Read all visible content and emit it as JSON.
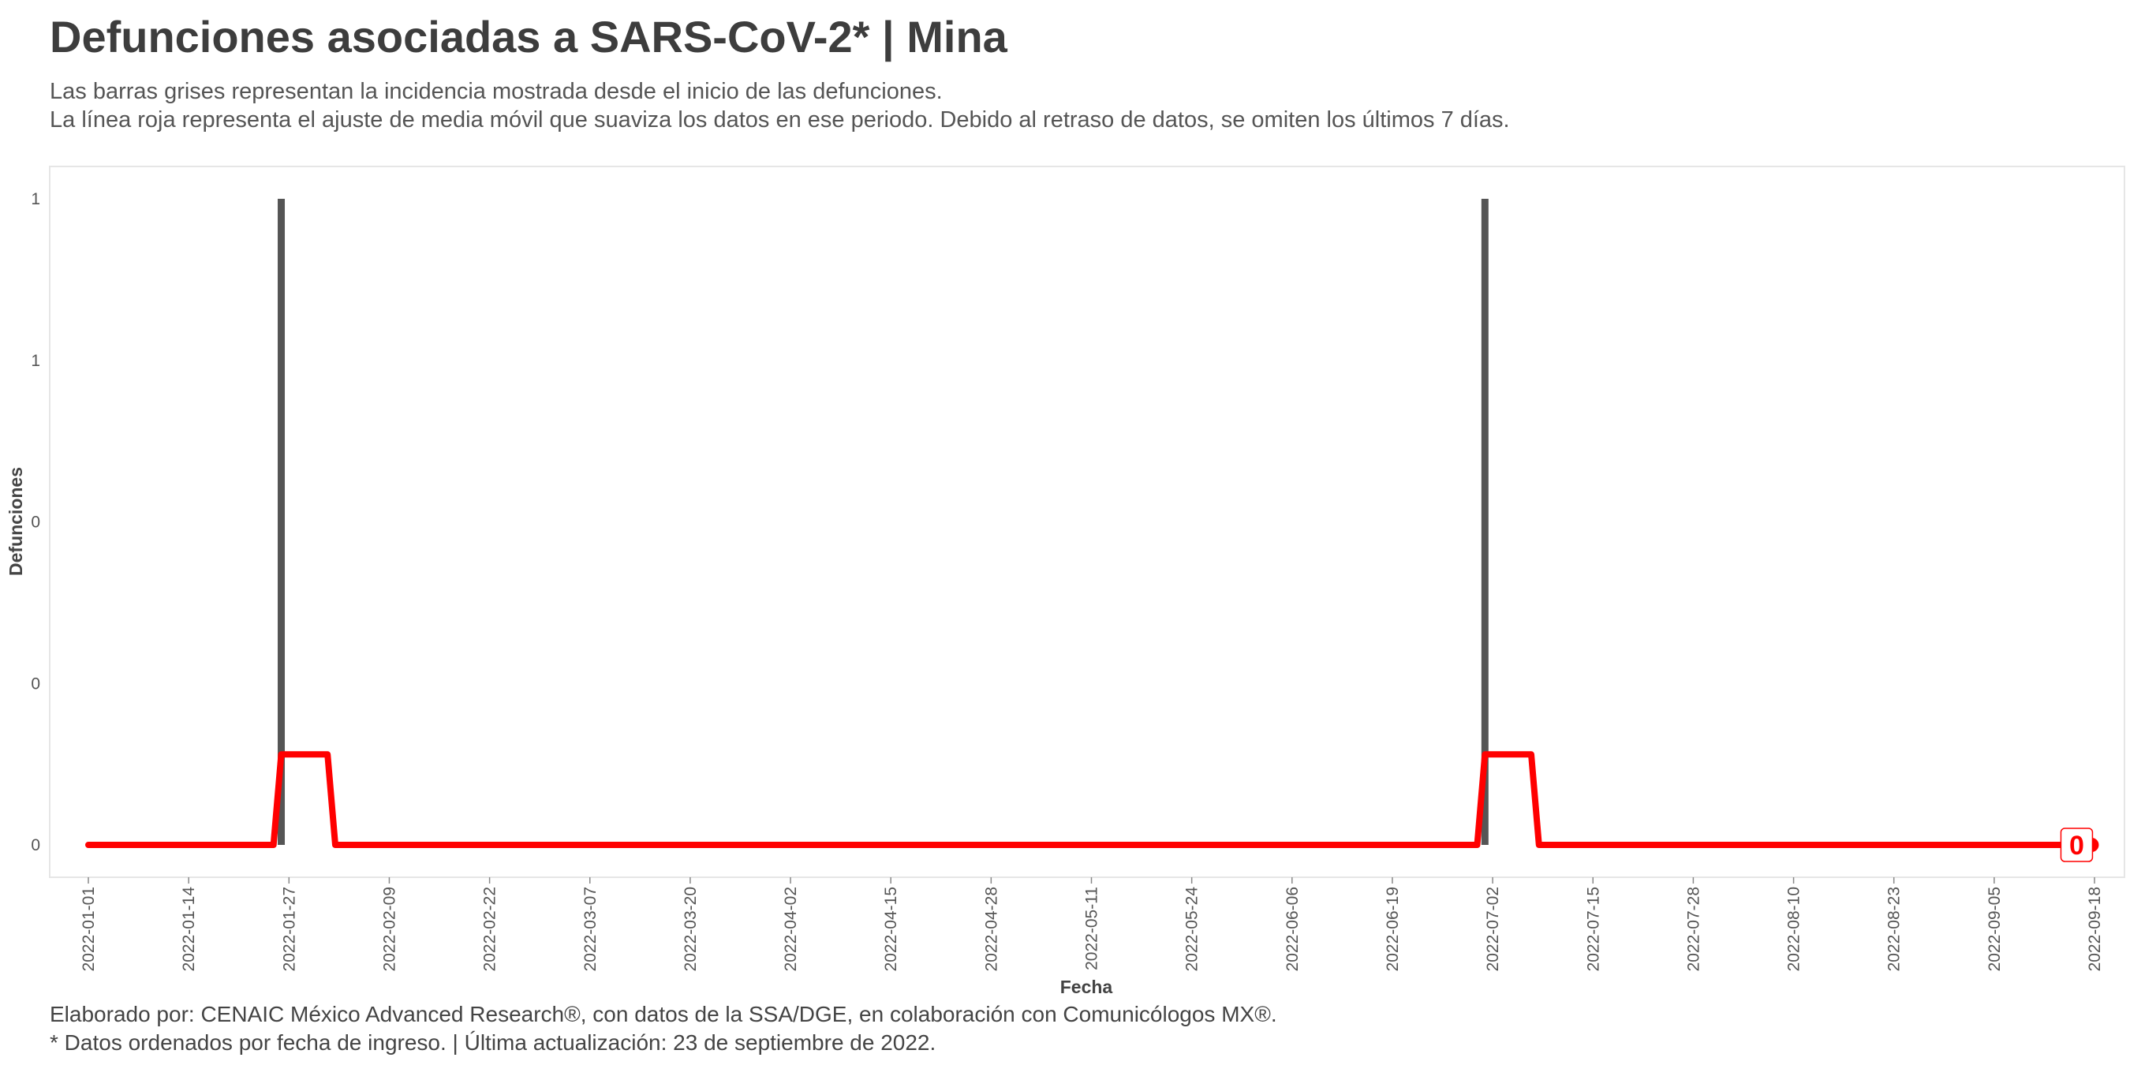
{
  "header": {
    "title": "Defunciones asociadas a SARS-CoV-2* | Mina",
    "subtitle_lines": [
      "Las barras grises representan la incidencia mostrada desde el inicio de las defunciones.",
      "La línea roja representa el ajuste de media móvil que suaviza los datos en ese periodo. Debido al retraso de datos, se omiten los últimos 7 días."
    ]
  },
  "footer": {
    "caption_lines": [
      "Elaborado por: CENAIC México Advanced Research®, con datos de la SSA/DGE, en colaboración con Comunicólogos MX®.",
      "* Datos ordenados por fecha de ingreso. | Última actualización: 23 de septiembre de 2022."
    ]
  },
  "colors": {
    "bar": "#555555",
    "line": "#ff0000",
    "panel_border": "#e6e6e6"
  },
  "chart_data": {
    "type": "bar",
    "xlabel": "Fecha",
    "ylabel": "Defunciones",
    "x_range": [
      "2022-01-01",
      "2022-09-18"
    ],
    "ylim": [
      0,
      1
    ],
    "x_tick_labels": [
      "2022-01-01",
      "2022-01-14",
      "2022-01-27",
      "2022-02-09",
      "2022-02-22",
      "2022-03-07",
      "2022-03-20",
      "2022-04-02",
      "2022-04-15",
      "2022-04-28",
      "2022-05-11",
      "2022-05-24",
      "2022-06-06",
      "2022-06-19",
      "2022-07-02",
      "2022-07-15",
      "2022-07-28",
      "2022-08-10",
      "2022-08-23",
      "2022-09-05",
      "2022-09-18"
    ],
    "y_ticks": [
      {
        "value": 0,
        "label": "0"
      },
      {
        "value": 0.25,
        "label": "0"
      },
      {
        "value": 0.5,
        "label": "0"
      },
      {
        "value": 0.75,
        "label": "1"
      },
      {
        "value": 1,
        "label": "1"
      }
    ],
    "bars": [
      {
        "date": "2022-01-26",
        "value": 1
      },
      {
        "date": "2022-07-01",
        "value": 1
      }
    ],
    "moving_average": [
      {
        "date": "2022-01-01",
        "value": 0
      },
      {
        "date": "2022-01-25",
        "value": 0
      },
      {
        "date": "2022-01-26",
        "value": 0.14
      },
      {
        "date": "2022-02-01",
        "value": 0.14
      },
      {
        "date": "2022-02-02",
        "value": 0
      },
      {
        "date": "2022-06-30",
        "value": 0
      },
      {
        "date": "2022-07-01",
        "value": 0.14
      },
      {
        "date": "2022-07-07",
        "value": 0.14
      },
      {
        "date": "2022-07-08",
        "value": 0
      },
      {
        "date": "2022-09-16",
        "value": 0
      }
    ],
    "end_point": {
      "date": "2022-09-16",
      "value": 0,
      "label": "0"
    },
    "grid": false,
    "legend": "none"
  }
}
